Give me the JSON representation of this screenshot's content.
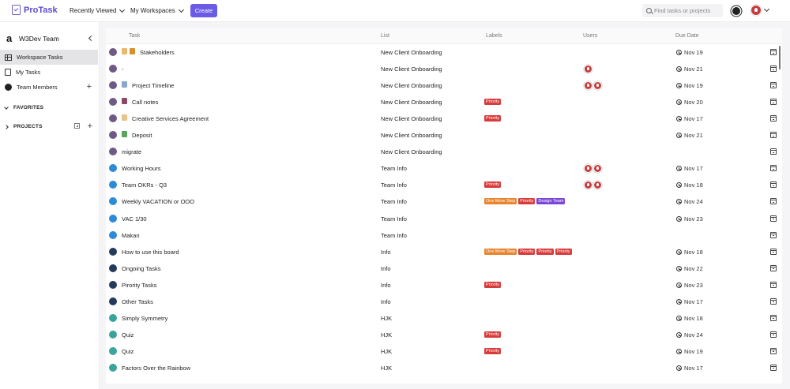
{
  "topbar": {
    "logo": "ProTask",
    "recently_viewed": "Recently Viewed",
    "my_workspaces": "My Workspaces",
    "create_label": "Create",
    "search_placeholder": "Find tasks or projects"
  },
  "sidebar": {
    "team_logo": "a",
    "team_name": "W3Dev Team",
    "items": [
      {
        "label": "Workspace Tasks"
      },
      {
        "label": "My Tasks"
      },
      {
        "label": "Team Members"
      }
    ],
    "favorites": "FAVORITES",
    "projects": "PROJECTS"
  },
  "table": {
    "columns": [
      "Task",
      "List",
      "Labels",
      "Users",
      "Due Date"
    ],
    "rows": [
      {
        "task": "Stakeholders",
        "list": "New Client Onboarding",
        "labels": [],
        "users": 0,
        "due": "Nov 19",
        "dot": "#6f5a86",
        "emoji": [
          "#e9b96e",
          "#d9902a"
        ]
      },
      {
        "task": "-",
        "list": "New Client Onboarding",
        "labels": [],
        "users": 1,
        "due": "Nov 21",
        "dot": "#6f5a86",
        "emoji": []
      },
      {
        "task": "Project Timeline",
        "list": "New Client Onboarding",
        "labels": [],
        "users": 2,
        "due": "Nov 19",
        "dot": "#6f5a86",
        "emoji": [
          "#8aa6c8"
        ]
      },
      {
        "task": "Call notes",
        "list": "New Client Onboarding",
        "labels": [
          "Priority"
        ],
        "users": 0,
        "due": "Nov 20",
        "dot": "#6f5a86",
        "emoji": [
          "#8a4a66"
        ]
      },
      {
        "task": "Creative Services Agreement",
        "list": "New Client Onboarding",
        "labels": [
          "Priority"
        ],
        "users": 0,
        "due": "Nov 17",
        "dot": "#6f5a86",
        "emoji": [
          "#e8c38a"
        ]
      },
      {
        "task": "Deposit",
        "list": "New Client Onboarding",
        "labels": [],
        "users": 0,
        "due": "Nov 21",
        "dot": "#6f5a86",
        "emoji": [
          "#5aa35a"
        ]
      },
      {
        "task": "migrate",
        "list": "New Client Onboarding",
        "labels": [],
        "users": 0,
        "due": "",
        "dot": "#6f5a86",
        "emoji": []
      },
      {
        "task": "Working Hours",
        "list": "Team Info",
        "labels": [],
        "users": 2,
        "due": "Nov 17",
        "dot": "#2d8ad6",
        "emoji": []
      },
      {
        "task": "Team OKRs - Q3",
        "list": "Team Info",
        "labels": [
          "Priority"
        ],
        "users": 2,
        "due": "Nov 18",
        "dot": "#2d8ad6",
        "emoji": []
      },
      {
        "task": "Weekly VACATION or OOO",
        "list": "Team Info",
        "labels": [
          "One More Step",
          "Priority",
          "Design Team"
        ],
        "users": 0,
        "due": "Nov 24",
        "dot": "#2d8ad6",
        "emoji": []
      },
      {
        "task": "VAC 1/30",
        "list": "Team Info",
        "labels": [],
        "users": 0,
        "due": "Nov 23",
        "dot": "#2d8ad6",
        "emoji": []
      },
      {
        "task": "Makan",
        "list": "Team Info",
        "labels": [],
        "users": 0,
        "due": "",
        "dot": "#2d8ad6",
        "emoji": []
      },
      {
        "task": "How to use this board",
        "list": "Info",
        "labels": [
          "One More Step",
          "Priority",
          "Priority",
          "Priority"
        ],
        "users": 0,
        "due": "Nov 18",
        "dot": "#263a5c",
        "emoji": []
      },
      {
        "task": "Ongoing Tasks",
        "list": "Info",
        "labels": [],
        "users": 0,
        "due": "Nov 22",
        "dot": "#263a5c",
        "emoji": []
      },
      {
        "task": "Pirority Tasks",
        "list": "Info",
        "labels": [
          "Priority"
        ],
        "users": 0,
        "due": "Nov 23",
        "dot": "#263a5c",
        "emoji": []
      },
      {
        "task": "Other Tasks",
        "list": "Info",
        "labels": [],
        "users": 0,
        "due": "Nov 17",
        "dot": "#263a5c",
        "emoji": []
      },
      {
        "task": "Simply Symmetry",
        "list": "HJK",
        "labels": [],
        "users": 0,
        "due": "Nov 18",
        "dot": "#3aa39a",
        "emoji": []
      },
      {
        "task": "Quiz",
        "list": "HJK",
        "labels": [
          "Priority"
        ],
        "users": 0,
        "due": "Nov 24",
        "dot": "#3aa39a",
        "emoji": []
      },
      {
        "task": "Quiz",
        "list": "HJK",
        "labels": [
          "Priority"
        ],
        "users": 0,
        "due": "Nov 19",
        "dot": "#3aa39a",
        "emoji": []
      },
      {
        "task": "Factors Over the Rainbow",
        "list": "HJK",
        "labels": [],
        "users": 0,
        "due": "Nov 17",
        "dot": "#3aa39a",
        "emoji": []
      }
    ]
  },
  "label_colors": {
    "Priority": "#d83b3b",
    "One More Step": "#e8842c",
    "Design Team": "#7a46d6"
  },
  "accent": "#6b5ce7"
}
